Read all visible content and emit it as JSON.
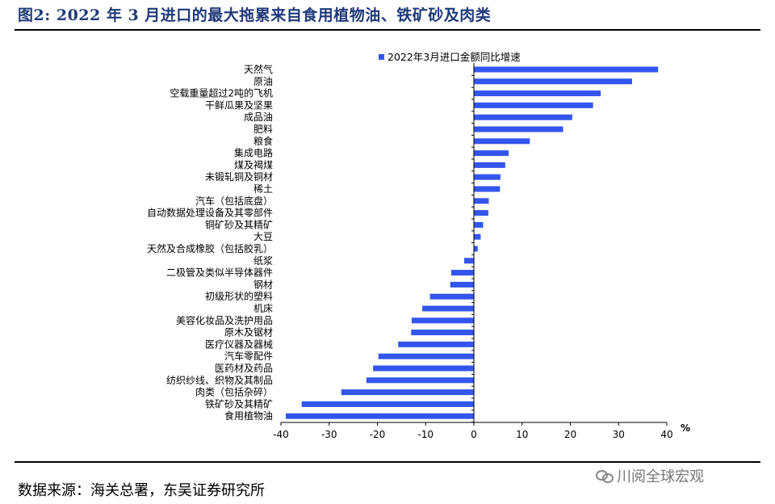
{
  "figure_title": "图2: 2022 年 3 月进口的最大拖累来自食用植物油、铁矿砂及肉类",
  "source_text": "数据来源：海关总署，东吴证券研究所",
  "watermark_text": "川阅全球宏观",
  "chart_data": {
    "type": "bar",
    "orientation": "horizontal",
    "categories": [
      "天然气",
      "原油",
      "空载重量超过2吨的飞机",
      "干鲜瓜果及坚果",
      "成品油",
      "肥料",
      "粮食",
      "集成电路",
      "煤及褐煤",
      "未锻轧铜及铜材",
      "稀土",
      "汽车（包括底盘）",
      "自动数据处理设备及其零部件",
      "铜矿砂及其精矿",
      "大豆",
      "天然及合成橡胶（包括胶乳）",
      "纸浆",
      "二极管及类似半导体器件",
      "钢材",
      "初级形状的塑料",
      "机床",
      "美容化妆品及洗护用品",
      "原木及锯材",
      "医疗仪器及器械",
      "汽车零配件",
      "医药材及药品",
      "纺织纱线、织物及其制品",
      "肉类（包括杂碎）",
      "铁矿砂及其精矿",
      "食用植物油"
    ],
    "series": [
      {
        "name": "2022年3月进口金额同比增速",
        "values": [
          38.2,
          32.8,
          26.3,
          24.7,
          20.4,
          18.5,
          11.6,
          7.2,
          6.5,
          5.5,
          5.4,
          3.1,
          3.0,
          1.9,
          1.4,
          0.8,
          -2.0,
          -4.7,
          -4.9,
          -9.1,
          -10.7,
          -12.9,
          -13.0,
          -15.7,
          -19.8,
          -20.9,
          -22.3,
          -27.5,
          -35.7,
          -39.0
        ]
      }
    ],
    "xlim": [
      -40,
      40
    ],
    "xticks": [
      -40,
      -30,
      -20,
      -10,
      0,
      10,
      20,
      30,
      40
    ],
    "x_unit": "%",
    "bar_color": "#3355ee",
    "legend_position": "top"
  }
}
